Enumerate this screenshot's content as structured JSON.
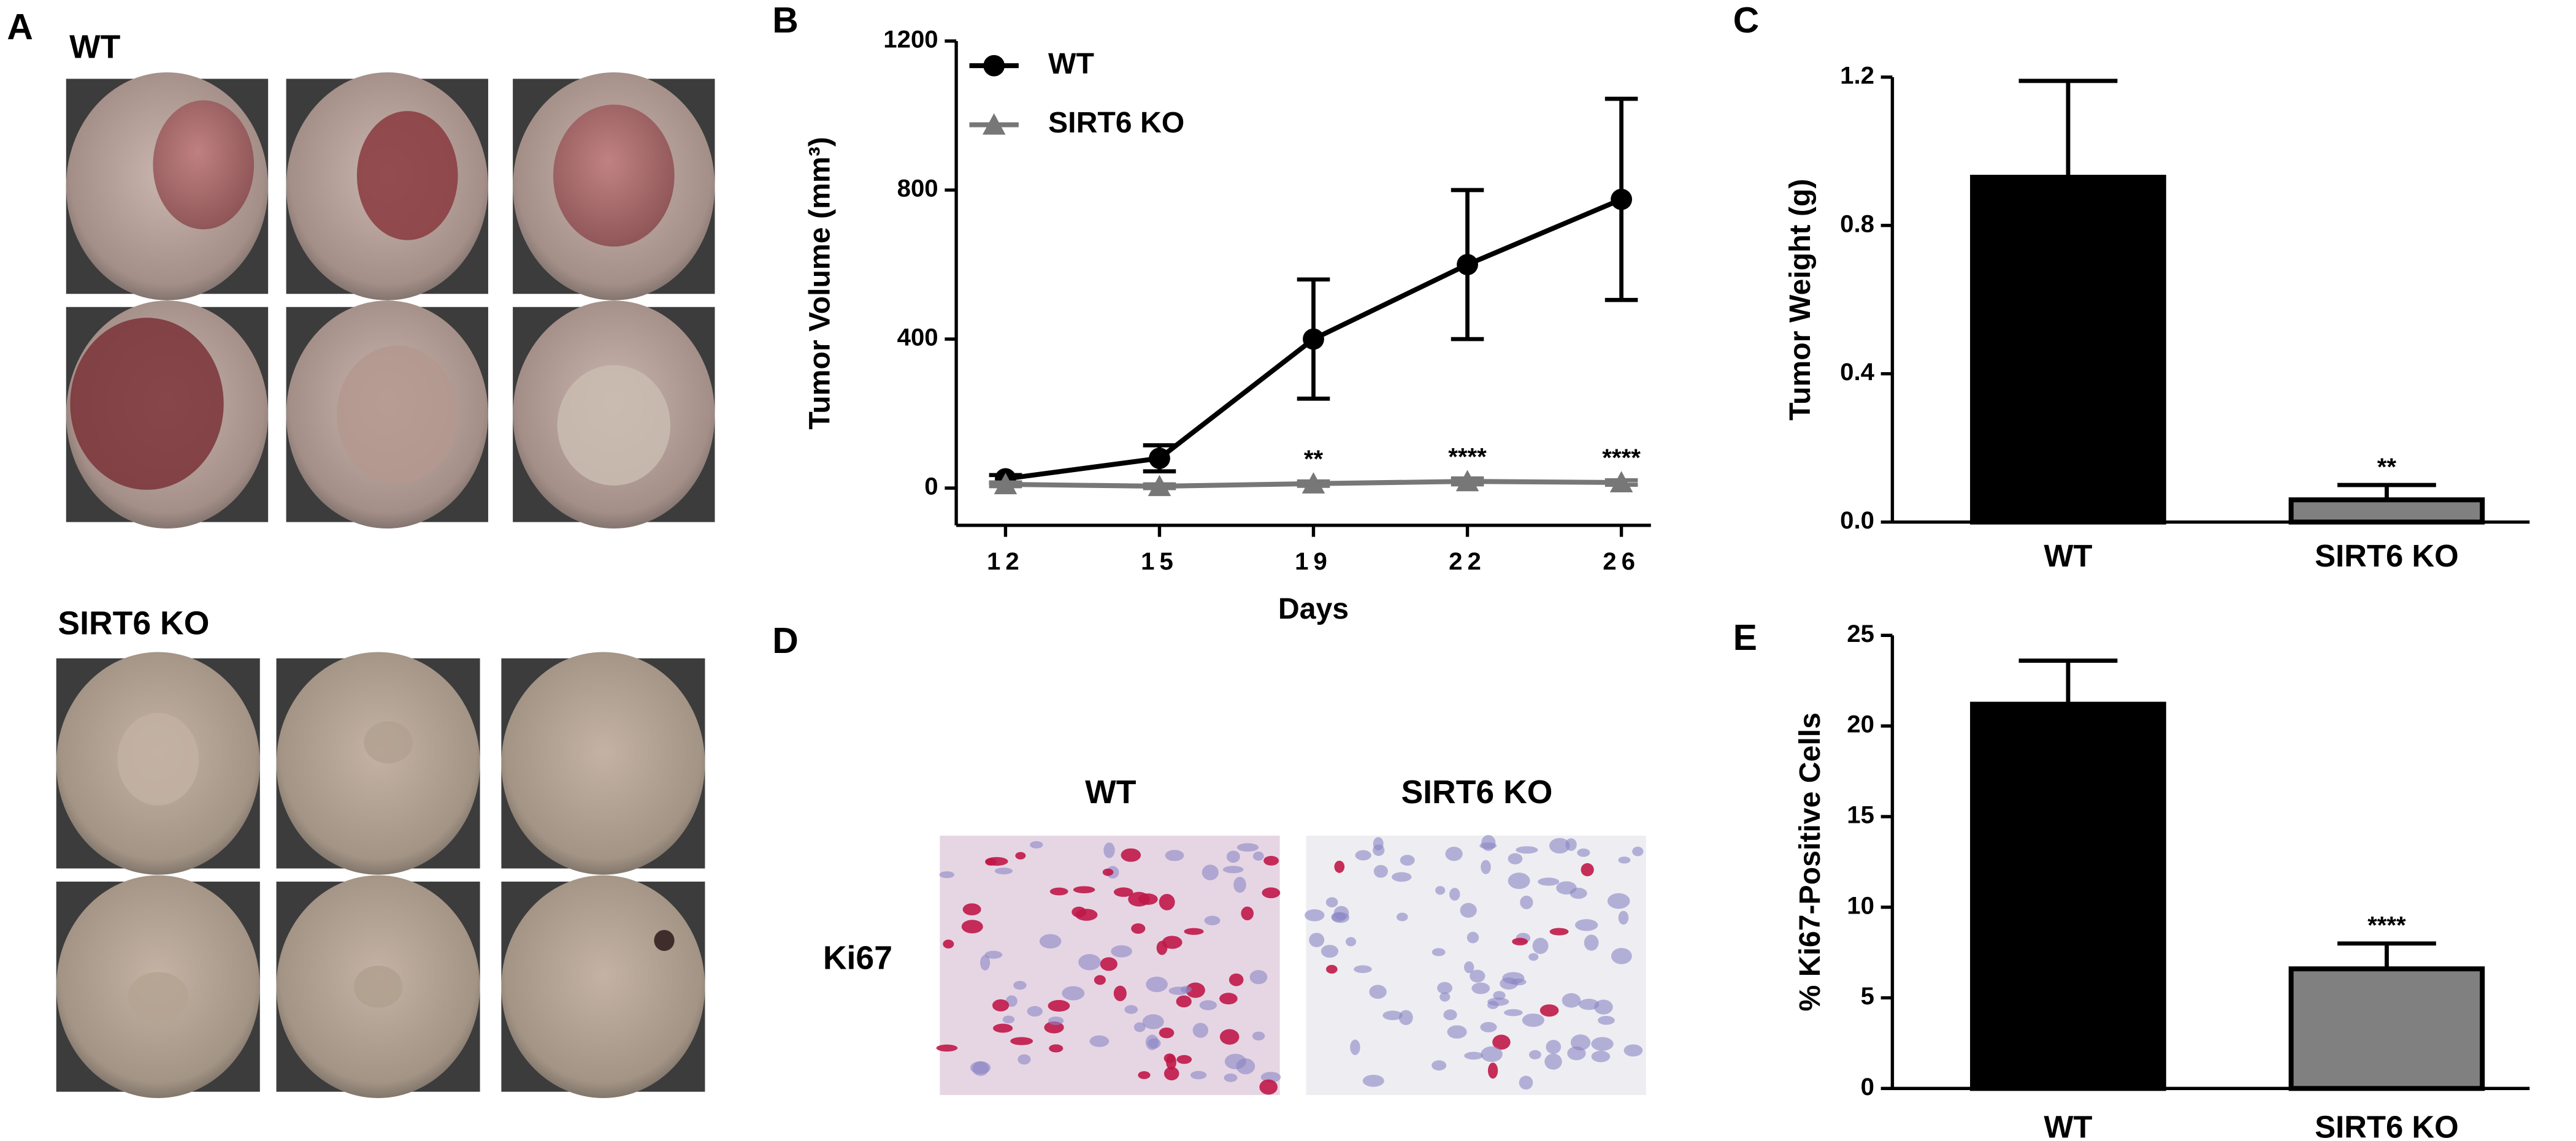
{
  "panels": {
    "A": {
      "label": "A",
      "groups": [
        "WT",
        "SIRT6 KO"
      ]
    },
    "D": {
      "label": "D",
      "columns": [
        "WT",
        "SIRT6 KO"
      ],
      "row": "Ki67"
    }
  },
  "chart_data": [
    {
      "type": "line",
      "label": "B",
      "x_label": "Days",
      "y_label": "Tumor Volume (mm³)",
      "categories": [
        "12",
        "15",
        "19",
        "22",
        "26"
      ],
      "ylim": [
        -100,
        1200
      ],
      "yticks": [
        0,
        400,
        800,
        1200
      ],
      "legend": "top-left",
      "series": [
        {
          "name": "WT",
          "color": "#000000",
          "marker": "circle",
          "values": [
            25,
            80,
            400,
            600,
            775
          ],
          "errors": [
            10,
            35,
            160,
            200,
            270
          ]
        },
        {
          "name": "SIRT6 KO",
          "color": "#777777",
          "marker": "triangle",
          "values": [
            10,
            5,
            12,
            18,
            15
          ],
          "errors": [
            5,
            5,
            6,
            8,
            6
          ],
          "significance": [
            null,
            null,
            "**",
            "****",
            "****"
          ]
        }
      ]
    },
    {
      "type": "bar",
      "label": "C",
      "y_label": "Tumor Weight (g)",
      "categories": [
        "WT",
        "SIRT6 KO"
      ],
      "ylim": [
        0,
        1.2
      ],
      "yticks": [
        {
          "value": 0,
          "label": "0.0"
        },
        0.4,
        0.8,
        1.2
      ],
      "values": [
        0.93,
        0.06
      ],
      "errors": [
        0.26,
        0.04
      ],
      "colors": [
        "#000000",
        "#808080"
      ],
      "significance": [
        null,
        "**"
      ]
    },
    {
      "type": "bar",
      "label": "E",
      "y_label": "% Ki67-Positive Cells",
      "categories": [
        "WT",
        "SIRT6 KO"
      ],
      "ylim": [
        0,
        25
      ],
      "yticks": [
        0,
        5,
        10,
        15,
        20,
        25
      ],
      "values": [
        21.2,
        6.6
      ],
      "errors": [
        2.4,
        1.4
      ],
      "colors": [
        "#000000",
        "#808080"
      ],
      "significance": [
        null,
        "****"
      ]
    }
  ]
}
